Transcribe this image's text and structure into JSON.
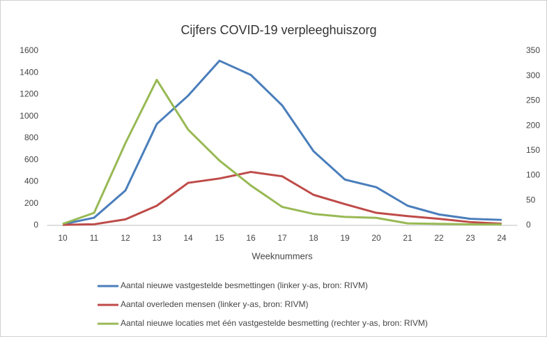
{
  "chart_data": {
    "type": "line",
    "title": "Cijfers COVID-19 verpleeghuiszorg",
    "x_label": "Weeknummers",
    "categories": [
      "10",
      "11",
      "12",
      "13",
      "14",
      "15",
      "16",
      "17",
      "18",
      "19",
      "20",
      "21",
      "22",
      "23",
      "24"
    ],
    "ylim": [
      0,
      1600
    ],
    "yticks": [
      0,
      200,
      400,
      600,
      800,
      1000,
      1200,
      1400,
      1600
    ],
    "y2lim": [
      0,
      350
    ],
    "y2ticks": [
      0,
      50,
      100,
      150,
      200,
      250,
      300,
      350
    ],
    "legend": "bottom",
    "series": [
      {
        "name": "Aantal nieuwe vastgestelde besmettingen  (linker y-as, bron: RIVM)",
        "color": "#4a7ebb",
        "values": [
          10,
          70,
          320,
          930,
          1190,
          1510,
          1380,
          1100,
          680,
          420,
          350,
          180,
          100,
          60,
          50
        ]
      },
      {
        "name": "Aantal overleden mensen  (linker y-as, bron: RIVM)",
        "color": "#be4b48",
        "values": [
          5,
          10,
          55,
          180,
          390,
          430,
          490,
          450,
          280,
          195,
          115,
          85,
          60,
          30,
          15
        ]
      },
      {
        "name": "Aantal nieuwe locaties met één vastgestelde besmetting  (rechter y-as, bron: RIVM)",
        "color": "#98b954",
        "axis": "y2",
        "values": [
          3,
          25,
          165,
          292,
          192,
          130,
          80,
          37,
          23,
          17,
          15,
          4,
          3,
          2,
          2
        ]
      }
    ]
  }
}
